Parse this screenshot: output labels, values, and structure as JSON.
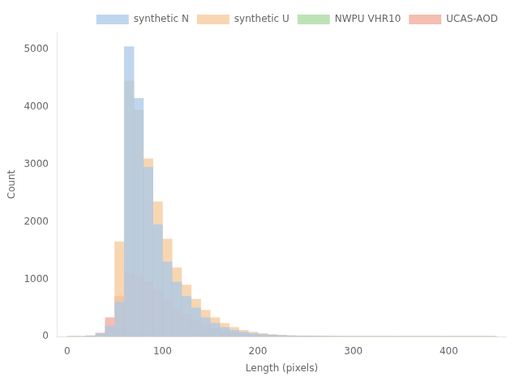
{
  "chart_data": {
    "type": "histogram",
    "xlabel": "Length (pixels)",
    "ylabel": "Count",
    "xlim": [
      -10,
      460
    ],
    "ylim": [
      0,
      5300
    ],
    "xticks": [
      0,
      100,
      200,
      300,
      400
    ],
    "yticks": [
      0,
      1000,
      2000,
      3000,
      4000,
      5000
    ],
    "grid": false,
    "legend": "upper right",
    "bins": [
      0,
      10,
      20,
      30,
      40,
      50,
      60,
      70,
      80,
      90,
      100,
      110,
      120,
      130,
      140,
      150,
      160,
      170,
      180,
      190,
      200,
      210,
      220,
      230,
      240,
      250,
      260,
      270,
      280,
      290,
      300,
      310,
      320,
      330,
      340,
      350,
      360,
      370,
      380,
      390,
      400,
      410,
      420,
      430,
      440,
      450
    ],
    "series": [
      {
        "name": "synthetic N",
        "color": "#aac8e8",
        "values": [
          0,
          2,
          10,
          50,
          180,
          600,
          5050,
          4150,
          2950,
          1950,
          1300,
          950,
          700,
          500,
          330,
          230,
          160,
          110,
          80,
          55,
          38,
          27,
          19,
          14,
          10,
          7,
          5,
          4,
          3,
          2,
          2,
          1,
          1,
          1,
          1,
          1,
          0,
          0,
          0,
          0,
          0,
          0,
          0,
          0,
          0
        ]
      },
      {
        "name": "synthetic U",
        "color": "#f5c898",
        "values": [
          0,
          2,
          8,
          30,
          100,
          1650,
          4450,
          3950,
          3100,
          2350,
          1700,
          1200,
          900,
          650,
          460,
          330,
          230,
          160,
          110,
          80,
          55,
          38,
          27,
          19,
          14,
          10,
          7,
          5,
          4,
          3,
          2,
          2,
          1,
          1,
          1,
          1,
          0,
          0,
          0,
          0,
          0,
          0,
          0,
          0,
          0
        ]
      },
      {
        "name": "NWPU VHR10",
        "color": "#a8d8a0",
        "values": [
          0,
          0,
          0,
          2,
          8,
          15,
          25,
          35,
          30,
          20,
          15,
          10,
          7,
          5,
          3,
          2,
          1,
          1,
          0,
          0,
          0,
          0,
          0,
          0,
          0,
          0,
          0,
          0,
          0,
          0,
          0,
          0,
          0,
          0,
          0,
          0,
          0,
          0,
          0,
          0,
          0,
          0,
          0,
          0,
          0
        ]
      },
      {
        "name": "UCAS-AOD",
        "color": "#f0a898",
        "values": [
          0,
          3,
          15,
          60,
          330,
          700,
          1100,
          1050,
          950,
          800,
          630,
          480,
          370,
          280,
          200,
          140,
          100,
          70,
          50,
          35,
          25,
          18,
          13,
          9,
          7,
          5,
          4,
          3,
          2,
          2,
          1,
          1,
          1,
          1,
          0,
          0,
          0,
          0,
          0,
          0,
          0,
          0,
          0,
          0,
          0
        ]
      }
    ]
  }
}
